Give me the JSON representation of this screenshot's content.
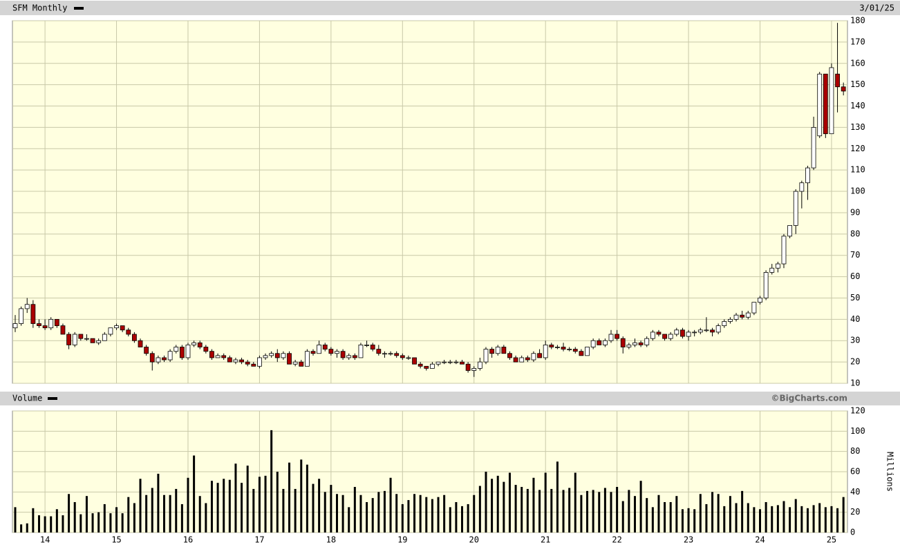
{
  "chart_data": [
    {
      "type": "candlestick",
      "title": "SFM Monthly",
      "date": "3/01/25",
      "open": [
        36,
        38,
        45,
        47,
        38,
        37,
        36,
        40,
        37,
        33,
        28,
        33,
        31,
        31,
        29,
        30,
        33,
        36,
        37,
        35,
        33,
        30,
        27,
        24,
        20,
        22,
        21,
        25,
        27,
        22,
        28,
        29,
        27,
        25,
        22,
        23,
        22,
        20,
        21,
        20,
        19,
        18,
        22,
        23,
        24,
        22,
        24,
        19,
        20,
        18,
        25,
        24,
        28,
        26,
        24,
        25,
        22,
        23,
        22,
        28,
        28,
        26,
        24,
        24,
        24,
        23,
        22,
        22,
        19,
        18,
        17,
        19,
        20,
        20,
        20,
        20,
        19,
        16,
        17,
        20,
        26,
        24,
        27,
        24,
        22,
        20,
        22,
        21,
        24,
        22,
        28,
        27,
        27,
        26,
        26,
        25,
        23,
        27,
        30,
        28,
        30,
        33,
        31,
        27,
        28,
        29,
        28,
        31,
        34,
        33,
        31,
        33,
        35,
        32,
        34,
        34,
        35,
        35,
        34,
        37,
        39,
        40,
        42,
        41,
        43,
        48,
        50,
        62,
        64,
        66,
        79,
        84,
        100,
        104,
        111,
        126,
        155,
        127,
        155,
        149
      ],
      "high": [
        42,
        46,
        50,
        49,
        40,
        40,
        41,
        40,
        38,
        34,
        34,
        33,
        33,
        31,
        31,
        34,
        36,
        38,
        37,
        36,
        34,
        31,
        28,
        25,
        23,
        23,
        26,
        28,
        28,
        29,
        30,
        30,
        28,
        26,
        24,
        24,
        23,
        22,
        22,
        21,
        20,
        23,
        24,
        25,
        26,
        25,
        25,
        21,
        21,
        26,
        26,
        30,
        29,
        27,
        26,
        26,
        24,
        24,
        29,
        30,
        29,
        28,
        25,
        25,
        25,
        24,
        23,
        22,
        20,
        18,
        20,
        20,
        21,
        21,
        21,
        21,
        20,
        18,
        22,
        27,
        27,
        28,
        28,
        25,
        23,
        23,
        23,
        25,
        26,
        30,
        29,
        28,
        29,
        27,
        27,
        26,
        27,
        31,
        31,
        31,
        35,
        35,
        32,
        29,
        31,
        30,
        32,
        35,
        35,
        33,
        34,
        36,
        36,
        35,
        35,
        36,
        41,
        36,
        38,
        40,
        41,
        43,
        44,
        44,
        48,
        51,
        63,
        66,
        67,
        80,
        84,
        101,
        105,
        112,
        135,
        156,
        155,
        160,
        179,
        151
      ],
      "low": [
        34,
        37,
        43,
        36,
        36,
        35,
        35,
        36,
        33,
        26,
        27,
        30,
        30,
        29,
        28,
        30,
        32,
        35,
        34,
        32,
        29,
        27,
        23,
        16,
        19,
        20,
        20,
        24,
        21,
        21,
        27,
        26,
        24,
        21,
        22,
        21,
        20,
        19,
        19,
        18,
        18,
        17,
        21,
        22,
        20,
        21,
        19,
        18,
        18,
        18,
        23,
        24,
        25,
        23,
        22,
        21,
        21,
        21,
        22,
        27,
        25,
        23,
        22,
        23,
        22,
        21,
        21,
        19,
        17,
        16,
        17,
        18,
        19,
        19,
        19,
        19,
        15,
        13,
        16,
        19,
        22,
        23,
        24,
        21,
        20,
        20,
        20,
        20,
        22,
        21,
        26,
        26,
        25,
        25,
        24,
        23,
        23,
        26,
        28,
        27,
        29,
        30,
        24,
        26,
        27,
        27,
        27,
        30,
        32,
        30,
        30,
        32,
        31,
        30,
        32,
        33,
        34,
        32,
        33,
        36,
        38,
        39,
        40,
        40,
        42,
        47,
        49,
        61,
        62,
        64,
        78,
        80,
        92,
        96,
        110,
        125,
        125,
        127,
        137,
        145
      ],
      "close": [
        38,
        45,
        47,
        38,
        37,
        36,
        40,
        37,
        33,
        28,
        33,
        31,
        31,
        29,
        30,
        33,
        36,
        37,
        35,
        33,
        30,
        27,
        24,
        20,
        22,
        21,
        25,
        27,
        22,
        28,
        29,
        27,
        25,
        22,
        23,
        22,
        20,
        21,
        20,
        19,
        18,
        22,
        23,
        24,
        22,
        24,
        19,
        20,
        18,
        25,
        24,
        28,
        26,
        24,
        25,
        22,
        23,
        22,
        28,
        28,
        26,
        24,
        24,
        24,
        23,
        22,
        22,
        19,
        18,
        17,
        19,
        20,
        20,
        20,
        20,
        19,
        16,
        17,
        20,
        26,
        24,
        27,
        24,
        22,
        20,
        22,
        21,
        24,
        22,
        28,
        27,
        27,
        26,
        26,
        25,
        23,
        27,
        30,
        28,
        30,
        33,
        31,
        27,
        28,
        29,
        28,
        31,
        34,
        33,
        31,
        33,
        35,
        32,
        34,
        34,
        35,
        35,
        34,
        37,
        39,
        40,
        42,
        41,
        43,
        48,
        50,
        62,
        64,
        66,
        79,
        84,
        100,
        104,
        111,
        130,
        155,
        127,
        158,
        149,
        147
      ],
      "up_color": "#ffffff",
      "down_color": "#aa0000",
      "outline_color": "#000000",
      "ylim": [
        10,
        180
      ],
      "yticks": [
        10,
        20,
        30,
        40,
        50,
        60,
        70,
        80,
        90,
        100,
        110,
        120,
        130,
        140,
        150,
        160,
        170,
        180
      ],
      "grid": true
    },
    {
      "type": "bar",
      "title": "Volume",
      "credit": "©BigCharts.com",
      "y_label": "Millions",
      "categories": [
        null,
        null,
        null,
        null,
        null,
        "14",
        null,
        null,
        null,
        null,
        null,
        null,
        null,
        null,
        null,
        null,
        null,
        "15",
        null,
        null,
        null,
        null,
        null,
        null,
        null,
        null,
        null,
        null,
        null,
        "16",
        null,
        null,
        null,
        null,
        null,
        null,
        null,
        null,
        null,
        null,
        null,
        "17",
        null,
        null,
        null,
        null,
        null,
        null,
        null,
        null,
        null,
        null,
        null,
        "18",
        null,
        null,
        null,
        null,
        null,
        null,
        null,
        null,
        null,
        null,
        null,
        "19",
        null,
        null,
        null,
        null,
        null,
        null,
        null,
        null,
        null,
        null,
        null,
        "20",
        null,
        null,
        null,
        null,
        null,
        null,
        null,
        null,
        null,
        null,
        null,
        "21",
        null,
        null,
        null,
        null,
        null,
        null,
        null,
        null,
        null,
        null,
        null,
        "22",
        null,
        null,
        null,
        null,
        null,
        null,
        null,
        null,
        null,
        null,
        null,
        "23",
        null,
        null,
        null,
        null,
        null,
        null,
        null,
        null,
        null,
        null,
        null,
        "24",
        null,
        null,
        null,
        null,
        null,
        null,
        null,
        null,
        null,
        null,
        null,
        "25",
        null,
        null
      ],
      "values": [
        25,
        8,
        9,
        24,
        17,
        16,
        16,
        23,
        17,
        38,
        30,
        18,
        36,
        19,
        20,
        28,
        19,
        25,
        19,
        35,
        29,
        53,
        37,
        44,
        58,
        37,
        37,
        43,
        28,
        54,
        76,
        36,
        29,
        51,
        49,
        53,
        52,
        68,
        49,
        66,
        43,
        55,
        56,
        101,
        60,
        43,
        69,
        43,
        72,
        67,
        48,
        53,
        40,
        47,
        38,
        37,
        25,
        45,
        37,
        30,
        34,
        40,
        41,
        54,
        38,
        28,
        32,
        38,
        37,
        35,
        33,
        35,
        37,
        25,
        30,
        26,
        28,
        37,
        46,
        60,
        53,
        56,
        50,
        59,
        47,
        45,
        43,
        54,
        42,
        59,
        43,
        70,
        42,
        44,
        59,
        37,
        41,
        42,
        40,
        44,
        40,
        45,
        31,
        42,
        36,
        51,
        34,
        25,
        37,
        30,
        30,
        36,
        23,
        24,
        23,
        38,
        28,
        40,
        38,
        26,
        36,
        29,
        41,
        29,
        25,
        23,
        30,
        26,
        27,
        31,
        25,
        33,
        26,
        24,
        27,
        29,
        25,
        26,
        24,
        35
      ],
      "color": "#000000",
      "ylim": [
        0,
        120
      ],
      "yticks": [
        0,
        20,
        40,
        60,
        80,
        100,
        120
      ],
      "grid": true
    }
  ]
}
